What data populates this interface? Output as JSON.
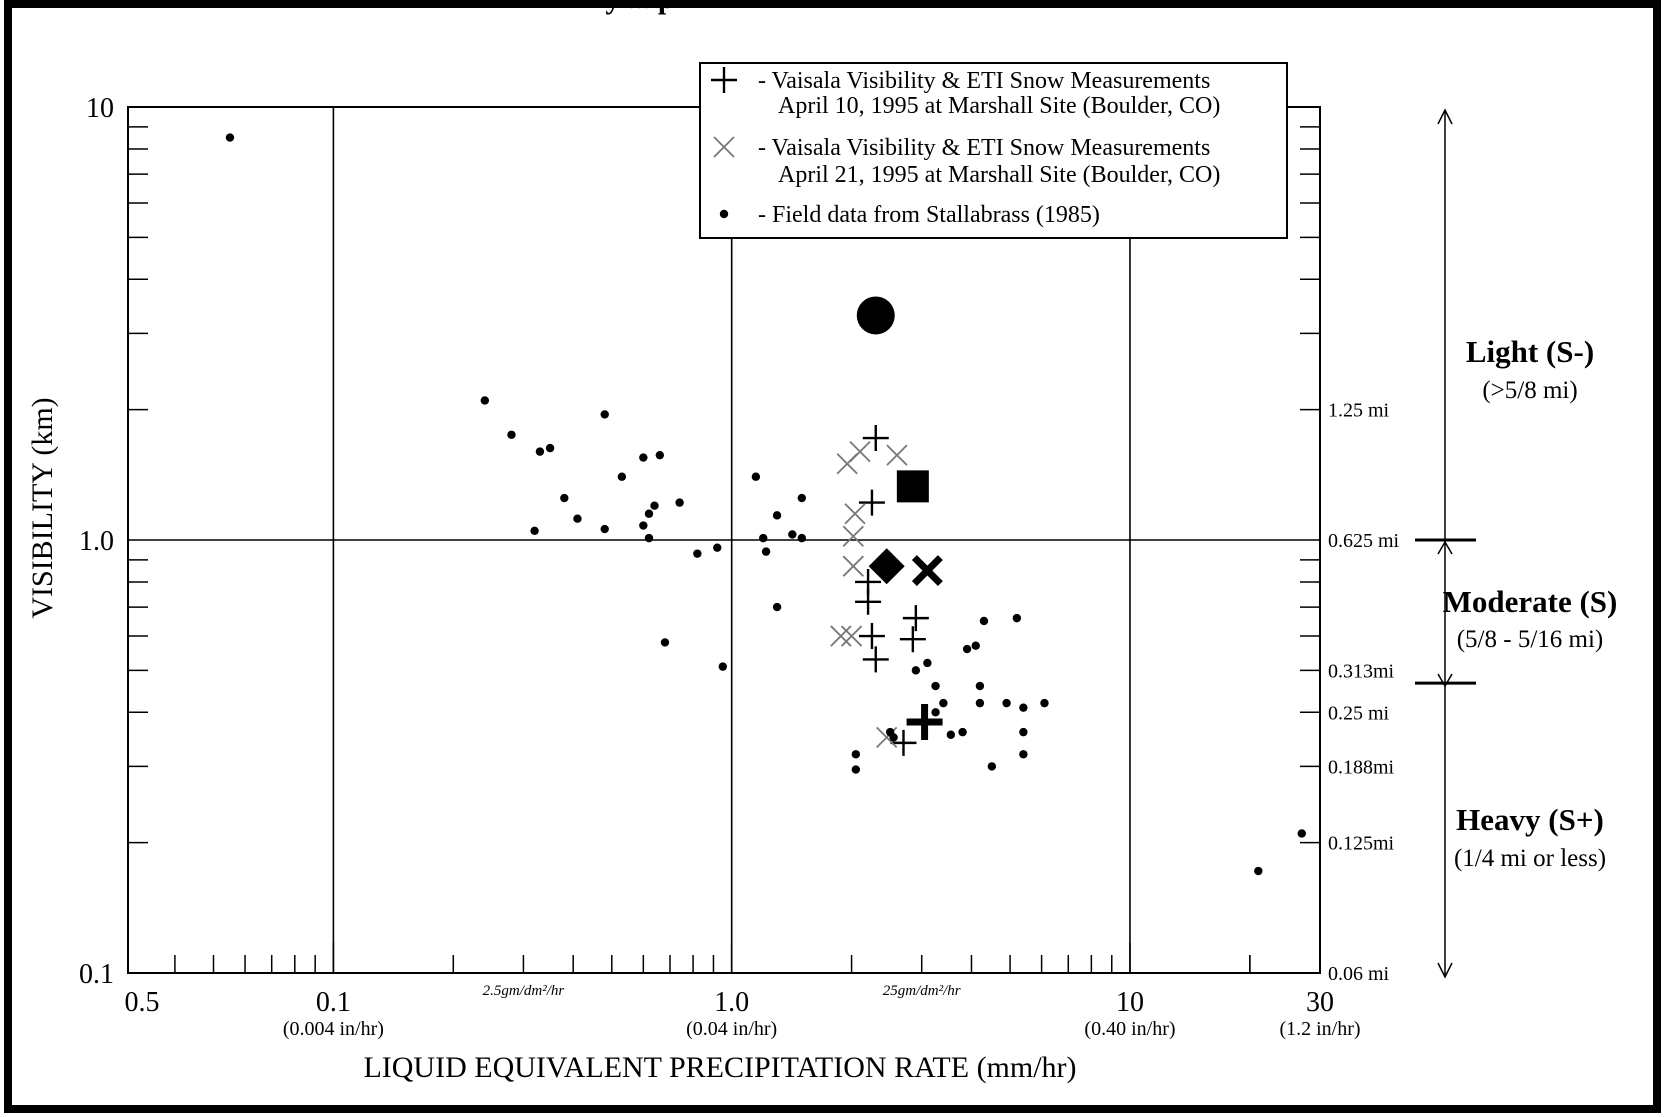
{
  "chart_data": {
    "type": "scatter",
    "title_fragment": "y ... p",
    "xlabel": "LIQUID EQUIVALENT PRECIPITATION RATE (mm/hr)",
    "ylabel": "VISIBILITY (km)",
    "xscale": "log",
    "yscale": "log",
    "xlim": [
      0.0305,
      30
    ],
    "ylim": [
      0.1,
      10
    ],
    "grid": true,
    "legend_position": "top-right",
    "x_tick_labels": [
      {
        "x": 0.1,
        "label": "0.1",
        "sublabel": "(0.004 in/hr)"
      },
      {
        "x": 1.0,
        "label": "1.0",
        "sublabel": "(0.04 in/hr)"
      },
      {
        "x": 10,
        "label": "10",
        "sublabel": "(0.40 in/hr)"
      },
      {
        "x": 30,
        "label": "30",
        "sublabel": "(1.2 in/hr)"
      }
    ],
    "x_extra_label": {
      "x": 0.04,
      "label": "0.5"
    },
    "x_axis_annotations": [
      {
        "x": 0.3,
        "label": "2.5gm/dm²/hr"
      },
      {
        "x": 3.0,
        "label": "25gm/dm²/hr"
      }
    ],
    "y_tick_labels": [
      {
        "y": 10,
        "label": "10"
      },
      {
        "y": 1.0,
        "label": "1.0"
      },
      {
        "y": 0.1,
        "label": "0.1"
      }
    ],
    "right_axis_labels": [
      {
        "y": 2.0,
        "label": "1.25 mi"
      },
      {
        "y": 1.0,
        "label": "0.625 mi"
      },
      {
        "y": 0.5,
        "label": "0.313mi"
      },
      {
        "y": 0.4,
        "label": "0.25 mi"
      },
      {
        "y": 0.3,
        "label": "0.188mi"
      },
      {
        "y": 0.2,
        "label": "0.125mi"
      },
      {
        "y": 0.1,
        "label": "0.06 mi"
      }
    ],
    "intensity_bands": [
      {
        "label": "Light (S-)",
        "sublabel": "(>5/8 mi)"
      },
      {
        "label": "Moderate (S)",
        "sublabel": "(5/8 - 5/16 mi)"
      },
      {
        "label": "Heavy (S+)",
        "sublabel": "(1/4 mi or less)"
      }
    ],
    "band_boundaries_y": [
      1.0,
      0.467
    ],
    "legend": [
      {
        "marker": "plus",
        "line1": "- Vaisala Visibility & ETI Snow Measurements",
        "line2": "April 10, 1995 at Marshall Site (Boulder, CO)"
      },
      {
        "marker": "x",
        "line1": "- Vaisala Visibility & ETI Snow Measurements",
        "line2": "April 21, 1995 at Marshall Site (Boulder, CO)"
      },
      {
        "marker": "dot",
        "line1": "- Field data from Stallabrass (1985)",
        "line2": ""
      }
    ],
    "series": [
      {
        "name": "- Vaisala Visibility & ETI Snow Measurements April 10, 1995 at Marshall Site (Boulder, CO)",
        "marker": "plus",
        "color": "#000000",
        "points": [
          [
            2.3,
            1.72
          ],
          [
            2.25,
            1.22
          ],
          [
            2.2,
            0.8
          ],
          [
            2.2,
            0.72
          ],
          [
            2.9,
            0.66
          ],
          [
            2.25,
            0.6
          ],
          [
            2.85,
            0.59
          ],
          [
            2.3,
            0.53
          ],
          [
            2.7,
            0.34
          ]
        ]
      },
      {
        "name": "- Vaisala Visibility & ETI Snow Measurements April 21, 1995 at Marshall Site (Boulder, CO)",
        "marker": "x",
        "color": "#777777",
        "points": [
          [
            1.95,
            1.5
          ],
          [
            2.1,
            1.6
          ],
          [
            2.6,
            1.57
          ],
          [
            2.04,
            1.15
          ],
          [
            2.02,
            1.02
          ],
          [
            2.02,
            0.87
          ],
          [
            1.88,
            0.6
          ],
          [
            2.0,
            0.6
          ],
          [
            2.45,
            0.35
          ]
        ]
      },
      {
        "name": "- Field data from Stallabrass (1985)",
        "marker": "dot",
        "color": "#000000",
        "points": [
          [
            0.055,
            8.5
          ],
          [
            0.24,
            2.1
          ],
          [
            0.28,
            1.75
          ],
          [
            0.33,
            1.6
          ],
          [
            0.35,
            1.63
          ],
          [
            0.38,
            1.25
          ],
          [
            0.41,
            1.12
          ],
          [
            0.32,
            1.05
          ],
          [
            0.48,
            1.06
          ],
          [
            0.48,
            1.95
          ],
          [
            0.53,
            1.4
          ],
          [
            0.6,
            1.55
          ],
          [
            0.62,
            1.15
          ],
          [
            0.64,
            1.2
          ],
          [
            0.66,
            1.57
          ],
          [
            0.6,
            1.08
          ],
          [
            0.62,
            1.01
          ],
          [
            0.74,
            1.22
          ],
          [
            0.82,
            0.93
          ],
          [
            0.92,
            0.96
          ],
          [
            1.15,
            1.4
          ],
          [
            1.2,
            1.01
          ],
          [
            1.22,
            0.94
          ],
          [
            1.3,
            1.14
          ],
          [
            1.42,
            1.03
          ],
          [
            1.5,
            1.25
          ],
          [
            1.5,
            1.01
          ],
          [
            1.3,
            0.7
          ],
          [
            0.68,
            0.58
          ],
          [
            0.95,
            0.51
          ],
          [
            2.05,
            0.32
          ],
          [
            2.05,
            0.295
          ],
          [
            2.5,
            0.36
          ],
          [
            2.9,
            0.5
          ],
          [
            3.1,
            0.52
          ],
          [
            3.25,
            0.46
          ],
          [
            3.4,
            0.42
          ],
          [
            3.55,
            0.355
          ],
          [
            3.8,
            0.36
          ],
          [
            3.9,
            0.56
          ],
          [
            4.1,
            0.57
          ],
          [
            4.2,
            0.46
          ],
          [
            4.2,
            0.42
          ],
          [
            4.3,
            0.65
          ],
          [
            4.5,
            0.3
          ],
          [
            4.9,
            0.42
          ],
          [
            5.2,
            0.66
          ],
          [
            5.4,
            0.41
          ],
          [
            5.4,
            0.36
          ],
          [
            5.4,
            0.32
          ],
          [
            6.1,
            0.42
          ],
          [
            21.0,
            0.172
          ],
          [
            27.0,
            0.21
          ],
          [
            2.55,
            0.35
          ],
          [
            3.25,
            0.4
          ]
        ]
      }
    ],
    "large_markers": [
      {
        "marker": "circle",
        "x": 2.3,
        "y": 3.3
      },
      {
        "marker": "square",
        "x": 2.85,
        "y": 1.33
      },
      {
        "marker": "diamond",
        "x": 2.45,
        "y": 0.87
      },
      {
        "marker": "x-bold",
        "x": 3.1,
        "y": 0.85
      },
      {
        "marker": "plus-bold",
        "x": 3.05,
        "y": 0.38
      }
    ]
  }
}
